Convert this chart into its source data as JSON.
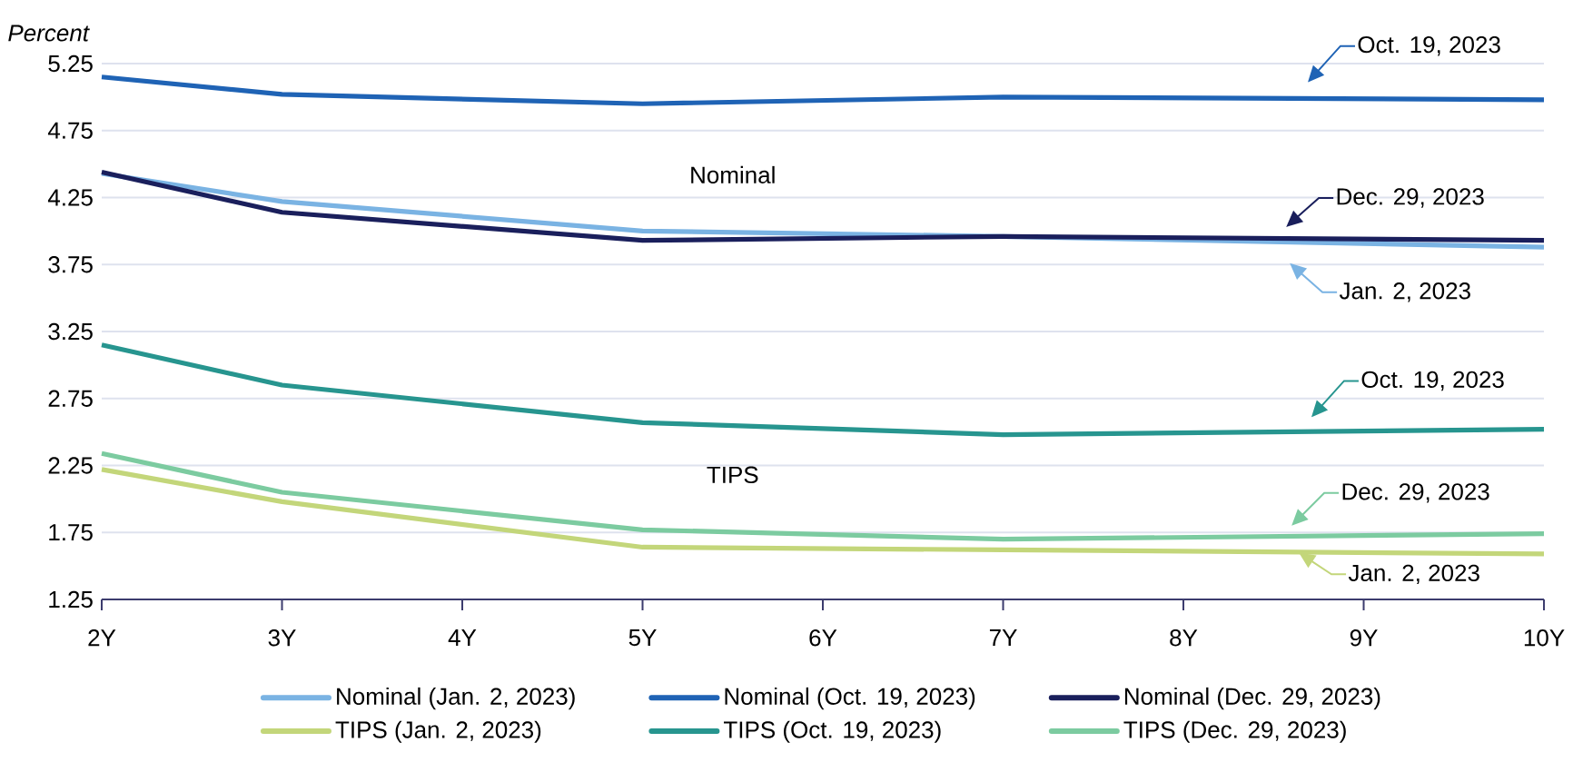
{
  "chart_data": {
    "type": "line",
    "ylabel": "Percent",
    "x": [
      2,
      3,
      5,
      7,
      10
    ],
    "series": [
      {
        "name": "Nominal (Jan. 2, 2023)",
        "color": "#7ab3e3",
        "values": [
          4.43,
          4.22,
          4.0,
          3.96,
          3.88
        ]
      },
      {
        "name": "Nominal (Oct. 19, 2023)",
        "color": "#1f63b5",
        "values": [
          5.15,
          5.02,
          4.95,
          5.0,
          4.98
        ]
      },
      {
        "name": "Nominal (Dec. 29, 2023)",
        "color": "#1a1f5c",
        "values": [
          4.44,
          4.14,
          3.93,
          3.96,
          3.93
        ]
      },
      {
        "name": "TIPS (Jan. 2, 2023)",
        "color": "#c3d67a",
        "values": [
          2.22,
          1.98,
          1.64,
          1.62,
          1.59
        ]
      },
      {
        "name": "TIPS (Oct. 19, 2023)",
        "color": "#27958f",
        "values": [
          3.15,
          2.85,
          2.57,
          2.48,
          2.52
        ]
      },
      {
        "name": "TIPS (Dec. 29, 2023)",
        "color": "#7ccba0",
        "values": [
          2.34,
          2.05,
          1.77,
          1.7,
          1.74
        ]
      }
    ],
    "xlim": [
      2,
      10
    ],
    "xticks": [
      {
        "value": 2,
        "label": "2Y"
      },
      {
        "value": 3,
        "label": "3Y"
      },
      {
        "value": 4,
        "label": "4Y"
      },
      {
        "value": 5,
        "label": "5Y"
      },
      {
        "value": 6,
        "label": "6Y"
      },
      {
        "value": 7,
        "label": "7Y"
      },
      {
        "value": 8,
        "label": "8Y"
      },
      {
        "value": 9,
        "label": "9Y"
      },
      {
        "value": 10,
        "label": "10Y"
      }
    ],
    "ylim": [
      1.25,
      5.25
    ],
    "yticks": [
      1.25,
      1.75,
      2.25,
      2.75,
      3.25,
      3.75,
      4.25,
      4.75,
      5.25
    ],
    "grid": "y",
    "legend": "bottom",
    "marker": "none",
    "line_style": "solid",
    "annotations": [
      "Nominal",
      "TIPS",
      "Oct. 19, 2023",
      "Dec. 29, 2023",
      "Jan. 2, 2023",
      "Oct. 19, 2023",
      "Dec. 29, 2023",
      {
        "text": "Jan. 2, 2023",
        "x": 8.64,
        "y": 1.6
      }
    ]
  }
}
